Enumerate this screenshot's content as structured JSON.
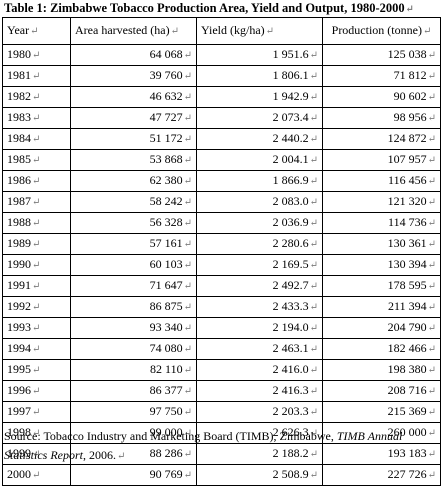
{
  "caption": "Table 1: Zimbabwe Tobacco Production Area, Yield and Output, 1980-2000",
  "paragraph_mark": "↵",
  "headers": {
    "year": "Year",
    "area": "Area harvested (ha)",
    "yield": "Yield (kg/ha)",
    "production": "Production (tonne)"
  },
  "rows": [
    {
      "year": "1980",
      "area": "64 068",
      "yield": "1 951.6",
      "production": "125 038"
    },
    {
      "year": "1981",
      "area": "39 760",
      "yield": "1 806.1",
      "production": "71 812"
    },
    {
      "year": "1982",
      "area": "46 632",
      "yield": "1 942.9",
      "production": "90 602"
    },
    {
      "year": "1983",
      "area": "47 727",
      "yield": "2 073.4",
      "production": "98 956"
    },
    {
      "year": "1984",
      "area": "51 172",
      "yield": "2 440.2",
      "production": "124 872"
    },
    {
      "year": "1985",
      "area": "53 868",
      "yield": "2 004.1",
      "production": "107 957"
    },
    {
      "year": "1986",
      "area": "62 380",
      "yield": "1 866.9",
      "production": "116 456"
    },
    {
      "year": "1987",
      "area": "58 242",
      "yield": "2 083.0",
      "production": "121 320"
    },
    {
      "year": "1988",
      "area": "56 328",
      "yield": "2 036.9",
      "production": "114 736"
    },
    {
      "year": "1989",
      "area": "57 161",
      "yield": "2 280.6",
      "production": "130 361"
    },
    {
      "year": "1990",
      "area": "60 103",
      "yield": "2 169.5",
      "production": "130 394"
    },
    {
      "year": "1991",
      "area": "71 647",
      "yield": "2 492.7",
      "production": "178 595"
    },
    {
      "year": "1992",
      "area": "86 875",
      "yield": "2 433.3",
      "production": "211 394"
    },
    {
      "year": "1993",
      "area": "93 340",
      "yield": "2 194.0",
      "production": "204 790"
    },
    {
      "year": "1994",
      "area": "74 080",
      "yield": "2 463.1",
      "production": "182 466"
    },
    {
      "year": "1995",
      "area": "82 110",
      "yield": "2 416.0",
      "production": "198 380"
    },
    {
      "year": "1996",
      "area": "86 377",
      "yield": "2 416.3",
      "production": "208 716"
    },
    {
      "year": "1997",
      "area": "97 750",
      "yield": "2 203.3",
      "production": "215 369"
    },
    {
      "year": "1998",
      "area": "99 000",
      "yield": "2 626.3",
      "production": "260 000"
    },
    {
      "year": "1999",
      "area": "88 286",
      "yield": "2 188.2",
      "production": "193 183"
    },
    {
      "year": "2000",
      "area": "90 769",
      "yield": "2 508.9",
      "production": "227 726"
    }
  ],
  "source": {
    "prefix": "Source: Tobacco Industry and Marketing Board (TIMB), Zimbabwe, ",
    "italic": "TIMB Annual Statistics Report",
    "suffix": ", 2006."
  }
}
